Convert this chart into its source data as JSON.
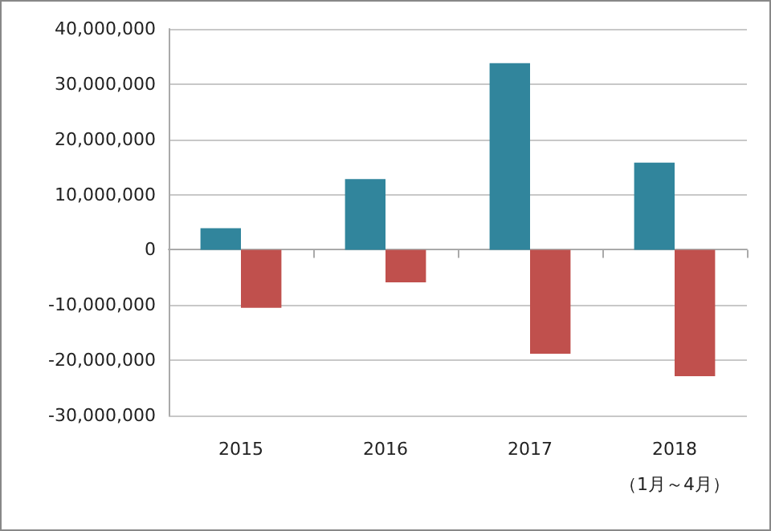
{
  "chart_data": {
    "type": "bar",
    "categories": [
      "2015",
      "2016",
      "2017",
      "2018\n（1月～4月）"
    ],
    "series": [
      {
        "color": "#31859c",
        "values": [
          3900000,
          12800000,
          33800000,
          15800000
        ]
      },
      {
        "color": "#c0504d",
        "values": [
          -10500000,
          -5900000,
          -18800000,
          -22900000
        ]
      }
    ],
    "ylim": [
      -30000000,
      40000000
    ],
    "yticks": [
      {
        "value": -30000000,
        "label": "-30,000,000"
      },
      {
        "value": -20000000,
        "label": "-20,000,000"
      },
      {
        "value": -10000000,
        "label": "-10,000,000"
      },
      0,
      {
        "value": 10000000,
        "label": "10,000,000"
      },
      {
        "value": 20000000,
        "label": "20,000,000"
      },
      {
        "value": 30000000,
        "label": "30,000,000"
      },
      {
        "value": 40000000,
        "label": "40,000,000"
      }
    ],
    "grid": "y"
  }
}
